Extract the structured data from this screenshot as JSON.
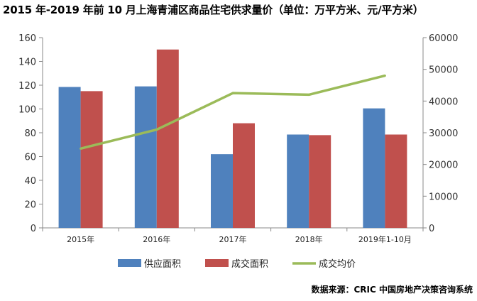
{
  "chart_data": {
    "type": "bar",
    "title": "2015 年-2019 年前 10 月上海青浦区商品住宅供求量价（单位：万平方米、元/平方米）",
    "categories": [
      "2015年",
      "2016年",
      "2017年",
      "2018年",
      "2019年1-10月"
    ],
    "series": [
      {
        "name": "供应面积",
        "type": "bar",
        "axis": "left",
        "color": "#4f81bd",
        "values": [
          118.5,
          119,
          62,
          78.5,
          100.5
        ]
      },
      {
        "name": "成交面积",
        "type": "bar",
        "axis": "left",
        "color": "#c0504d",
        "values": [
          115,
          150,
          88,
          78,
          78.5
        ]
      },
      {
        "name": "成交均价",
        "type": "line",
        "axis": "right",
        "color": "#9bbb59",
        "values": [
          25000,
          31000,
          42500,
          42000,
          48000
        ]
      }
    ],
    "ylim_left": [
      0,
      160
    ],
    "yticks_left": [
      0,
      20,
      40,
      60,
      80,
      100,
      120,
      140,
      160
    ],
    "ylim_right": [
      0,
      60000
    ],
    "yticks_right": [
      0,
      10000,
      20000,
      30000,
      40000,
      50000,
      60000
    ],
    "grid": false,
    "legend": "bottom"
  },
  "source": "数据来源：CRIC 中国房地产决策咨询系统"
}
